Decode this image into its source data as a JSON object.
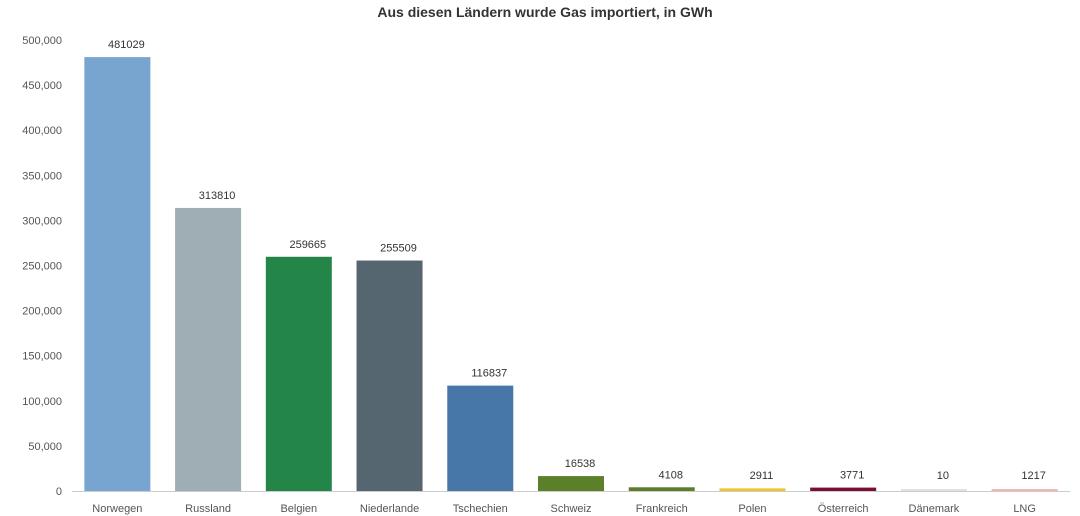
{
  "chart_data": {
    "type": "bar",
    "title": "Aus diesen Ländern wurde Gas importiert, in GWh",
    "xlabel": "",
    "ylabel": "",
    "categories": [
      "Norwegen",
      "Russland",
      "Belgien",
      "Niederlande",
      "Tschechien",
      "Schweiz",
      "Frankreich",
      "Polen",
      "Österreich",
      "Dänemark",
      "LNG"
    ],
    "values": [
      481029,
      313810,
      259665,
      255509,
      116837,
      16538,
      4108,
      2911,
      3771,
      10,
      1217
    ],
    "value_labels": [
      "481029",
      "313810",
      "259665",
      "255509",
      "116837",
      "16538",
      "4108",
      "2911",
      "3771",
      "10",
      "1217"
    ],
    "colors": [
      "#78a5d0",
      "#9fadb5",
      "#248548",
      "#566670",
      "#4677a8",
      "#5c7f2a",
      "#5d7d2a",
      "#f2c12e",
      "#780f38",
      "#e0e0e0",
      "#f5b5b0"
    ],
    "ylim": [
      0,
      500000
    ],
    "yticks": [
      0,
      50000,
      100000,
      150000,
      200000,
      250000,
      300000,
      350000,
      400000,
      450000,
      500000
    ],
    "ytick_labels": [
      "0",
      "50,000",
      "100,000",
      "150,000",
      "200,000",
      "250,000",
      "300,000",
      "350,000",
      "400,000",
      "450,000",
      "500,000"
    ],
    "grid": false,
    "legend": "none"
  }
}
